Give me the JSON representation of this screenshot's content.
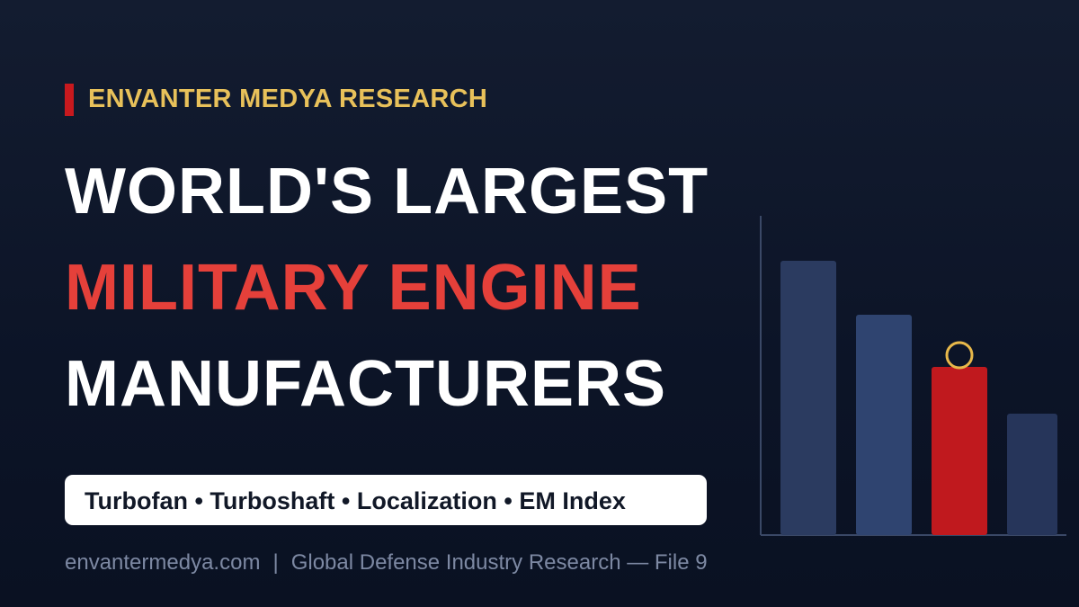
{
  "eyebrow": "ENVANTER MEDYA RESEARCH",
  "title": {
    "line1": "WORLD'S LARGEST",
    "line2": "MILITARY ENGINE",
    "line3": "MANUFACTURERS"
  },
  "tags": "Turbofan • Turboshaft • Localization • EM Index",
  "footer": {
    "site": "envantermedya.com",
    "separator": "|",
    "source": "Global Defense Industry Research — File 9"
  }
}
